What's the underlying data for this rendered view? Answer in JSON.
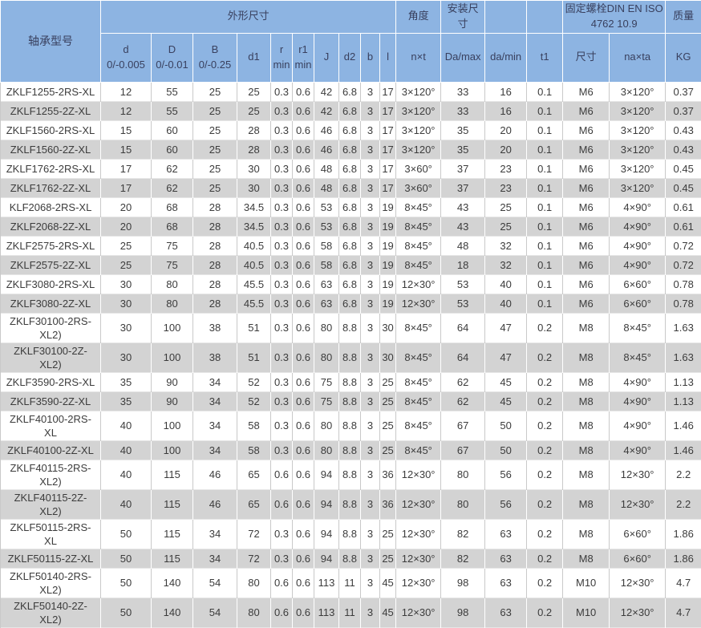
{
  "colors": {
    "header_bg": "#8db4e2",
    "header_text": "#39405e",
    "body_text": "#3c3c3c",
    "row_alt_bg": "#d3d3d3",
    "grid_line": "#c9c9c9"
  },
  "table": {
    "header": {
      "model_label": "轴承型号",
      "groups": [
        {
          "key": "waixing",
          "label": "外形尺寸",
          "colspan": 10
        },
        {
          "key": "jiaodu",
          "label": "角度",
          "colspan": 1
        },
        {
          "key": "anzhuang",
          "label": "安装尺寸",
          "colspan": 1
        },
        {
          "key": "empty-1",
          "label": "",
          "colspan": 1
        },
        {
          "key": "empty-2",
          "label": "",
          "colspan": 1
        },
        {
          "key": "guding-luoshuan",
          "label": "固定螺栓DIN EN ISO\n4762  10.9",
          "colspan": 2
        },
        {
          "key": "zhiliang",
          "label": "质量",
          "colspan": 1
        }
      ],
      "columns": [
        {
          "key": "d",
          "label": "d\n0/-0.005"
        },
        {
          "key": "D",
          "label": "D\n0/-0.01"
        },
        {
          "key": "B",
          "label": "B\n0/-0.25"
        },
        {
          "key": "d1",
          "label": "d1"
        },
        {
          "key": "r",
          "label": "r\nmin"
        },
        {
          "key": "r1",
          "label": "r1\nmin"
        },
        {
          "key": "J",
          "label": "J"
        },
        {
          "key": "d2",
          "label": "d2"
        },
        {
          "key": "b",
          "label": "b"
        },
        {
          "key": "l",
          "label": "l"
        },
        {
          "key": "nxt",
          "label": "n×t"
        },
        {
          "key": "Da-max",
          "label": "Da/max"
        },
        {
          "key": "da-min",
          "label": "da/min"
        },
        {
          "key": "t1",
          "label": "t1"
        },
        {
          "key": "chicun",
          "label": "尺寸"
        },
        {
          "key": "naxta",
          "label": "na×ta"
        },
        {
          "key": "kg",
          "label": "KG"
        }
      ]
    },
    "rows": [
      {
        "model": "ZKLF1255-2RS-XL",
        "values": [
          "12",
          "55",
          "25",
          "25",
          "0.3",
          "0.6",
          "42",
          "6.8",
          "3",
          "17",
          "3×120°",
          "33",
          "16",
          "0.1",
          "M6",
          "3×120°",
          "0.37"
        ]
      },
      {
        "model": "ZKLF1255-2Z-XL",
        "values": [
          "12",
          "55",
          "25",
          "25",
          "0.3",
          "0.6",
          "42",
          "6.8",
          "3",
          "17",
          "3×120°",
          "33",
          "16",
          "0.1",
          "M6",
          "3×120°",
          "0.37"
        ]
      },
      {
        "model": "ZKLF1560-2RS-XL",
        "values": [
          "15",
          "60",
          "25",
          "28",
          "0.3",
          "0.6",
          "46",
          "6.8",
          "3",
          "17",
          "3×120°",
          "35",
          "20",
          "0.1",
          "M6",
          "3×120°",
          "0.43"
        ]
      },
      {
        "model": "ZKLF1560-2Z-XL",
        "values": [
          "15",
          "60",
          "25",
          "28",
          "0.3",
          "0.6",
          "46",
          "6.8",
          "3",
          "17",
          "3×120°",
          "35",
          "20",
          "0.1",
          "M6",
          "3×120°",
          "0.43"
        ]
      },
      {
        "model": "ZKLF1762-2RS-XL",
        "values": [
          "17",
          "62",
          "25",
          "30",
          "0.3",
          "0.6",
          "48",
          "6.8",
          "3",
          "17",
          "3×60°",
          "37",
          "23",
          "0.1",
          "M6",
          "3×120°",
          "0.45"
        ]
      },
      {
        "model": "ZKLF1762-2Z-XL",
        "values": [
          "17",
          "62",
          "25",
          "30",
          "0.3",
          "0.6",
          "48",
          "6.8",
          "3",
          "17",
          "3×60°",
          "37",
          "23",
          "0.1",
          "M6",
          "3×120°",
          "0.45"
        ]
      },
      {
        "model": "KLF2068-2RS-XL",
        "values": [
          "20",
          "68",
          "28",
          "34.5",
          "0.3",
          "0.6",
          "53",
          "6.8",
          "3",
          "19",
          "8×45°",
          "43",
          "25",
          "0.1",
          "M6",
          "4×90°",
          "0.61"
        ]
      },
      {
        "model": "ZKLF2068-2Z-XL",
        "values": [
          "20",
          "68",
          "28",
          "34.5",
          "0.3",
          "0.6",
          "53",
          "6.8",
          "3",
          "19",
          "8×45°",
          "43",
          "25",
          "0.1",
          "M6",
          "4×90°",
          "0.61"
        ]
      },
      {
        "model": "ZKLF2575-2RS-XL",
        "values": [
          "25",
          "75",
          "28",
          "40.5",
          "0.3",
          "0.6",
          "58",
          "6.8",
          "3",
          "19",
          "8×45°",
          "48",
          "32",
          "0.1",
          "M6",
          "4×90°",
          "0.72"
        ]
      },
      {
        "model": "ZKLF2575-2Z-XL",
        "values": [
          "25",
          "75",
          "28",
          "40.5",
          "0.3",
          "0.6",
          "58",
          "6.8",
          "3",
          "19",
          "8×45°",
          "18",
          "32",
          "0.1",
          "M6",
          "4×90°",
          "0.72"
        ]
      },
      {
        "model": "ZKLF3080-2RS-XL",
        "values": [
          "30",
          "80",
          "28",
          "45.5",
          "0.3",
          "0.6",
          "63",
          "6.8",
          "3",
          "19",
          "12×30°",
          "53",
          "40",
          "0.1",
          "M6",
          "6×60°",
          "0.78"
        ]
      },
      {
        "model": "ZKLF3080-2Z-XL",
        "values": [
          "30",
          "80",
          "28",
          "45.5",
          "0.3",
          "0.6",
          "63",
          "6.8",
          "3",
          "19",
          "12×30°",
          "53",
          "40",
          "0.1",
          "M6",
          "6×60°",
          "0.78"
        ]
      },
      {
        "model": "ZKLF30100-2RS-\nXL2)",
        "values": [
          "30",
          "100",
          "38",
          "51",
          "0.3",
          "0.6",
          "80",
          "8.8",
          "3",
          "30",
          "8×45°",
          "64",
          "47",
          "0.2",
          "M8",
          "8×45°",
          "1.63"
        ]
      },
      {
        "model": "ZKLF30100-2Z-\nXL2)",
        "values": [
          "30",
          "100",
          "38",
          "51",
          "0.3",
          "0.6",
          "80",
          "8.8",
          "3",
          "30",
          "8×45°",
          "64",
          "47",
          "0.2",
          "M8",
          "8×45°",
          "1.63"
        ]
      },
      {
        "model": "ZKLF3590-2RS-XL",
        "values": [
          "35",
          "90",
          "34",
          "52",
          "0.3",
          "0.6",
          "75",
          "8.8",
          "3",
          "25",
          "8×45°",
          "62",
          "45",
          "0.2",
          "M8",
          "4×90°",
          "1.13"
        ]
      },
      {
        "model": "ZKLF3590-2Z-XL",
        "values": [
          "35",
          "90",
          "34",
          "52",
          "0.3",
          "0.6",
          "75",
          "8.8",
          "3",
          "25",
          "8×45°",
          "62",
          "45",
          "0.2",
          "M8",
          "4×90°",
          "1.13"
        ]
      },
      {
        "model": "ZKLF40100-2RS-\nXL",
        "values": [
          "40",
          "100",
          "34",
          "58",
          "0.3",
          "0.6",
          "80",
          "8.8",
          "3",
          "25",
          "8×45°",
          "67",
          "50",
          "0.2",
          "M8",
          "4×90°",
          "1.46"
        ]
      },
      {
        "model": "ZKLF40100-2Z-XL",
        "values": [
          "40",
          "100",
          "34",
          "58",
          "0.3",
          "0.6",
          "80",
          "8.8",
          "3",
          "25",
          "8×45°",
          "67",
          "50",
          "0.2",
          "M8",
          "4×90°",
          "1.46"
        ]
      },
      {
        "model": "ZKLF40115-2RS-\nXL2)",
        "values": [
          "40",
          "115",
          "46",
          "65",
          "0.6",
          "0.6",
          "94",
          "8.8",
          "3",
          "36",
          "12×30°",
          "80",
          "56",
          "0.2",
          "M8",
          "12×30°",
          "2.2"
        ]
      },
      {
        "model": "ZKLF40115-2Z-\nXL2)",
        "values": [
          "40",
          "115",
          "46",
          "65",
          "0.6",
          "0.6",
          "94",
          "8.8",
          "3",
          "36",
          "12×30°",
          "80",
          "56",
          "0.2",
          "M8",
          "12×30°",
          "2.2"
        ]
      },
      {
        "model": "ZKLF50115-2RS-\nXL",
        "values": [
          "50",
          "115",
          "34",
          "72",
          "0.3",
          "0.6",
          "94",
          "8.8",
          "3",
          "25",
          "12×30°",
          "82",
          "63",
          "0.2",
          "M8",
          "6×60°",
          "1.86"
        ]
      },
      {
        "model": "ZKLF50115-2Z-XL",
        "values": [
          "50",
          "115",
          "34",
          "72",
          "0.3",
          "0.6",
          "94",
          "8.8",
          "3",
          "25",
          "12×30°",
          "82",
          "63",
          "0.2",
          "M8",
          "6×60°",
          "1.86"
        ]
      },
      {
        "model": "ZKLF50140-2RS-\nXL2)",
        "values": [
          "50",
          "140",
          "54",
          "80",
          "0.6",
          "0.6",
          "113",
          "11",
          "3",
          "45",
          "12×30°",
          "98",
          "63",
          "0.2",
          "M10",
          "12×30°",
          "4.7"
        ]
      },
      {
        "model": "ZKLF50140-2Z-\nXL2)",
        "values": [
          "50",
          "140",
          "54",
          "80",
          "0.6",
          "0.6",
          "113",
          "11",
          "3",
          "45",
          "12×30°",
          "98",
          "63",
          "0.2",
          "M10",
          "12×30°",
          "4.7"
        ]
      }
    ]
  }
}
